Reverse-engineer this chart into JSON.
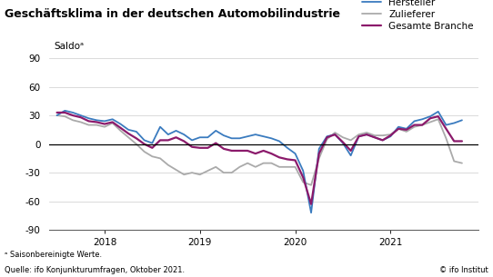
{
  "title": "Geschäftsklima in der deutschen Automobilindustrie",
  "ylabel": "Saldoᵃ",
  "source": "Quelle: ifo Konjunkturumfragen, Oktober 2021.",
  "footnote": "ᵃ Saisonbereinigte Werte.",
  "copyright": "© ifo Institut",
  "ylim": [
    -90,
    90
  ],
  "yticks": [
    -90,
    -60,
    -30,
    0,
    30,
    60,
    90
  ],
  "legend_labels": [
    "Hersteller",
    "Zulieferer",
    "Gesamte Branche"
  ],
  "colors": {
    "hersteller": "#3a7bbf",
    "zulieferer": "#aaaaaa",
    "gesamte": "#8B1A6B"
  },
  "hersteller_y": [
    30,
    35,
    33,
    30,
    27,
    25,
    24,
    26,
    21,
    15,
    13,
    4,
    1,
    18,
    10,
    14,
    10,
    4,
    7,
    7,
    14,
    9,
    6,
    6,
    8,
    10,
    8,
    6,
    3,
    -4,
    -10,
    -28,
    -72,
    -5,
    8,
    10,
    1,
    -12,
    8,
    10,
    7,
    4,
    8,
    18,
    16,
    24,
    26,
    29,
    34,
    20,
    22,
    25
  ],
  "zulieferer_y": [
    30,
    29,
    25,
    23,
    20,
    20,
    18,
    22,
    14,
    7,
    0,
    -8,
    -13,
    -15,
    -22,
    -27,
    -32,
    -30,
    -32,
    -28,
    -24,
    -30,
    -30,
    -24,
    -20,
    -24,
    -20,
    -20,
    -24,
    -24,
    -24,
    -40,
    -43,
    -15,
    5,
    12,
    7,
    4,
    10,
    12,
    9,
    9,
    10,
    16,
    13,
    18,
    20,
    23,
    26,
    6,
    -18,
    -20
  ],
  "gesamte_y": [
    33,
    33,
    30,
    28,
    24,
    23,
    21,
    23,
    17,
    11,
    6,
    0,
    -4,
    4,
    4,
    7,
    3,
    -3,
    -4,
    -4,
    1,
    -5,
    -7,
    -7,
    -7,
    -10,
    -7,
    -10,
    -14,
    -16,
    -17,
    -35,
    -63,
    -10,
    7,
    10,
    2,
    -7,
    8,
    10,
    7,
    4,
    9,
    16,
    15,
    20,
    20,
    27,
    29,
    16,
    3,
    3
  ],
  "x_vals": [
    2017.5,
    2017.583,
    2017.667,
    2017.75,
    2017.833,
    2017.917,
    2018.0,
    2018.083,
    2018.167,
    2018.25,
    2018.333,
    2018.417,
    2018.5,
    2018.583,
    2018.667,
    2018.75,
    2018.833,
    2018.917,
    2019.0,
    2019.083,
    2019.167,
    2019.25,
    2019.333,
    2019.417,
    2019.5,
    2019.583,
    2019.667,
    2019.75,
    2019.833,
    2019.917,
    2020.0,
    2020.083,
    2020.167,
    2020.25,
    2020.333,
    2020.417,
    2020.5,
    2020.583,
    2020.667,
    2020.75,
    2020.833,
    2020.917,
    2021.0,
    2021.083,
    2021.167,
    2021.25,
    2021.333,
    2021.417,
    2021.5,
    2021.583,
    2021.667,
    2021.75
  ]
}
